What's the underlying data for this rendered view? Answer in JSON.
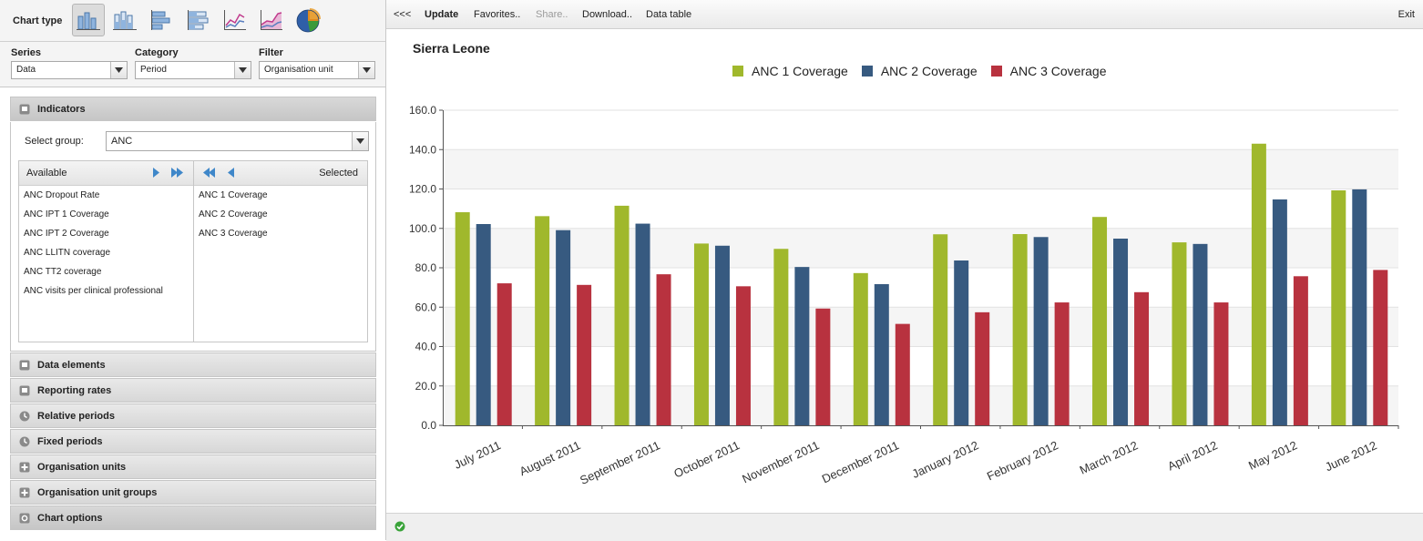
{
  "left": {
    "chart_type_label": "Chart type",
    "chart_types": [
      "column",
      "stacked-column",
      "bar",
      "stacked-bar",
      "line",
      "area",
      "pie"
    ],
    "active_chart_type": "column",
    "series": {
      "label": "Series",
      "value": "Data"
    },
    "category": {
      "label": "Category",
      "value": "Period"
    },
    "filter": {
      "label": "Filter",
      "value": "Organisation unit"
    },
    "indicators": {
      "title": "Indicators",
      "select_group_label": "Select group:",
      "select_group_value": "ANC",
      "available_label": "Available",
      "selected_label": "Selected",
      "available": [
        "ANC Dropout Rate",
        "ANC IPT 1 Coverage",
        "ANC IPT 2 Coverage",
        "ANC LLITN coverage",
        "ANC TT2 coverage",
        "ANC visits per clinical professional"
      ],
      "selected": [
        "ANC 1 Coverage",
        "ANC 2 Coverage",
        "ANC 3 Coverage"
      ]
    },
    "sections": [
      "Data elements",
      "Reporting rates",
      "Relative periods",
      "Fixed periods",
      "Organisation units",
      "Organisation unit groups",
      "Chart options"
    ]
  },
  "toolbar": {
    "collapse": "<<<",
    "update": "Update",
    "favorites": "Favorites..",
    "share": "Share..",
    "download": "Download..",
    "data_table": "Data table",
    "exit": "Exit"
  },
  "colors": {
    "series1": "#a0b82c",
    "series2": "#375a80",
    "series3": "#b8323f"
  },
  "chart_data": {
    "type": "bar",
    "title": "Sierra Leone",
    "categories": [
      "July 2011",
      "August 2011",
      "September 2011",
      "October 2011",
      "November 2011",
      "December 2011",
      "January 2012",
      "February 2012",
      "March 2012",
      "April 2012",
      "May 2012",
      "June 2012"
    ],
    "series": [
      {
        "name": "ANC 1 Coverage",
        "values": [
          108.2,
          106.2,
          111.5,
          92.3,
          89.6,
          77.3,
          97.0,
          97.1,
          105.8,
          92.9,
          143.0,
          119.3
        ]
      },
      {
        "name": "ANC 2 Coverage",
        "values": [
          102.2,
          99.1,
          102.4,
          91.2,
          80.4,
          71.7,
          83.7,
          95.6,
          94.8,
          92.1,
          114.7,
          119.8
        ]
      },
      {
        "name": "ANC 3 Coverage",
        "values": [
          72.1,
          71.3,
          76.7,
          70.6,
          59.3,
          51.5,
          57.4,
          62.4,
          67.6,
          62.4,
          75.7,
          78.9
        ]
      }
    ],
    "yticks": [
      "0.0",
      "20.0",
      "40.0",
      "60.0",
      "80.0",
      "100.0",
      "120.0",
      "140.0",
      "160.0"
    ],
    "ylim": [
      0,
      160
    ],
    "legend": "top",
    "grid": true
  }
}
